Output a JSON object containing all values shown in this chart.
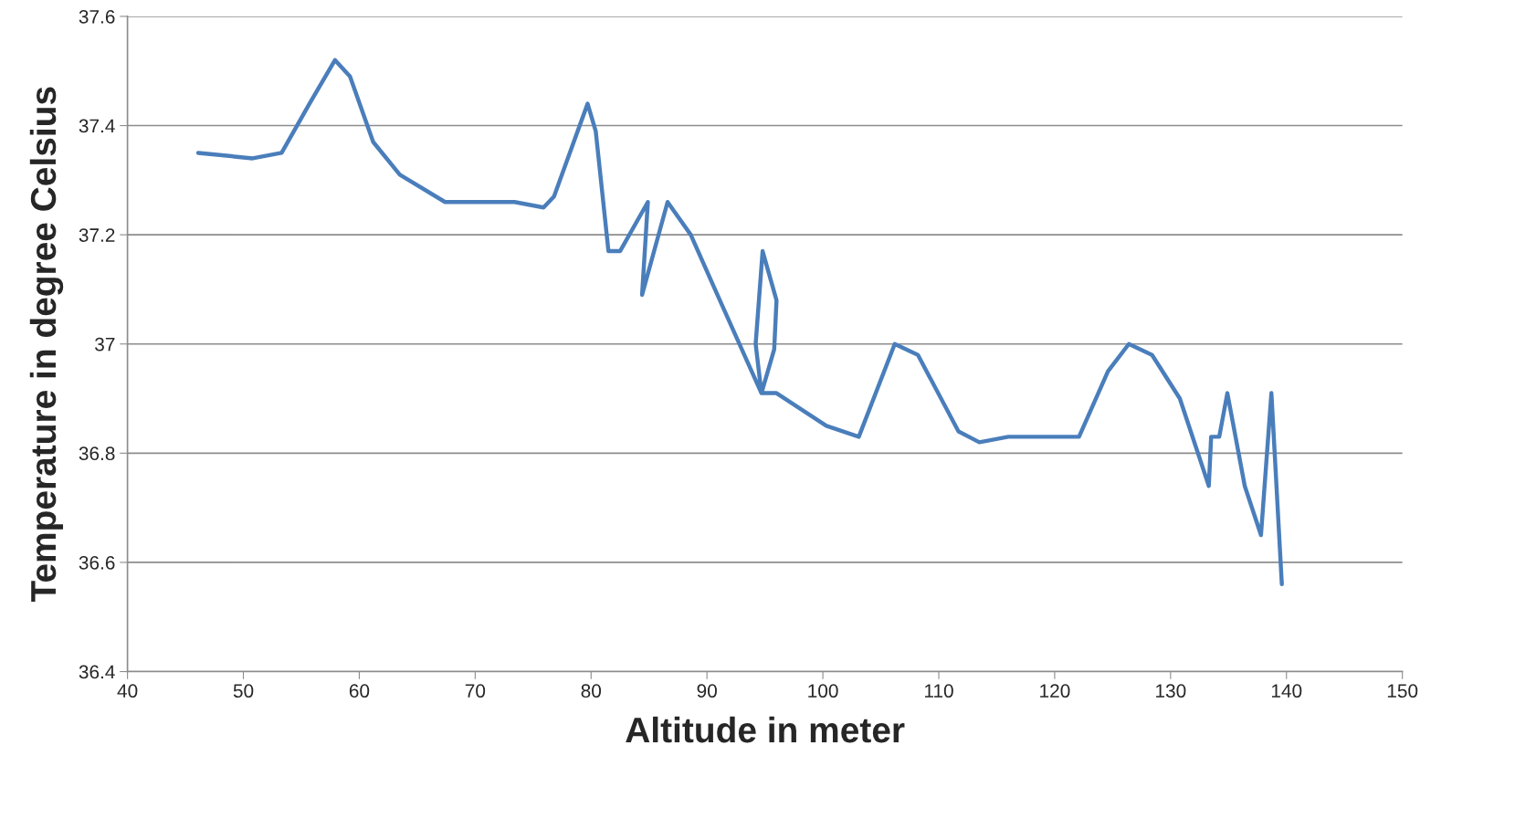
{
  "chart_data": {
    "type": "line",
    "xlabel": "Altitude in meter",
    "ylabel": "Temperature in degree Celsius",
    "xlim": [
      40,
      150
    ],
    "xticks": [
      40,
      50,
      60,
      70,
      80,
      90,
      100,
      110,
      120,
      130,
      140,
      150
    ],
    "ylim": [
      36.4,
      37.6
    ],
    "yticks": [
      36.4,
      36.6,
      36.8,
      37,
      37.2,
      37.4,
      37.6
    ],
    "grid": "y",
    "marker": "none",
    "line_style": "solid",
    "series": [
      {
        "color": "#4a7ebb",
        "x": [
          46.1,
          50.8,
          53.3,
          55.7,
          57.9,
          59.2,
          61.2,
          63.5,
          67.4,
          70.6,
          73.4,
          75.9,
          76.8,
          79.7,
          80.4,
          81.5,
          82.5,
          84.9,
          84.4,
          86.6,
          88.6,
          90.9,
          94.7,
          94.2,
          94.8,
          96.0,
          95.8,
          94.7,
          96.0,
          100.3,
          103.1,
          106.2,
          108.2,
          111.7,
          113.5,
          116.0,
          120.7,
          122.1,
          124.6,
          126.4,
          128.4,
          130.8,
          133.3,
          133.5,
          134.2,
          134.9,
          136.4,
          137.8,
          138.7,
          139.6
        ],
        "values": [
          37.35,
          37.34,
          37.35,
          37.44,
          37.52,
          37.49,
          37.37,
          37.31,
          37.26,
          37.26,
          37.26,
          37.25,
          37.27,
          37.44,
          37.39,
          37.17,
          37.17,
          37.26,
          37.09,
          37.26,
          37.2,
          37.09,
          36.91,
          37.0,
          37.17,
          37.08,
          36.99,
          36.91,
          36.91,
          36.85,
          36.83,
          37.0,
          36.98,
          36.84,
          36.82,
          36.83,
          36.83,
          36.83,
          36.95,
          37.0,
          36.98,
          36.9,
          36.74,
          36.83,
          36.83,
          36.91,
          36.74,
          36.65,
          36.91,
          36.56
        ]
      }
    ]
  }
}
